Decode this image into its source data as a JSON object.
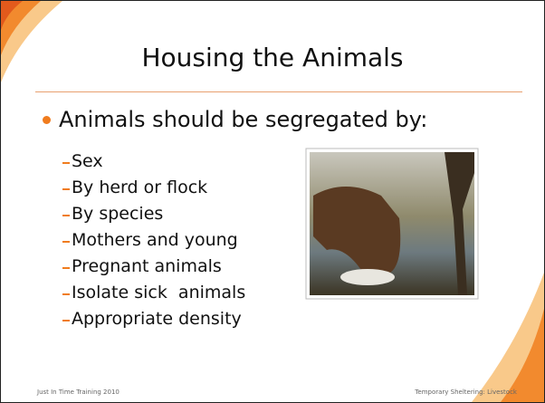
{
  "slide": {
    "title": "Housing the Animals",
    "bullet": "Animals should be segregated by:",
    "sub_items": [
      "Sex",
      "By herd or flock",
      "By species",
      "Mothers and young",
      "Pregnant animals",
      "Isolate sick  animals",
      "Appropriate density"
    ],
    "footer_left": "Just In Time Training 2010",
    "footer_right": "Temporary Sheltering: Livestock"
  }
}
